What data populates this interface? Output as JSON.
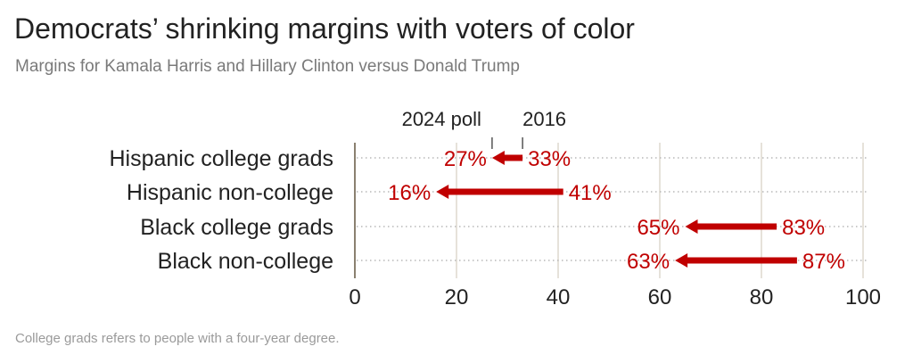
{
  "header": {
    "title": "Democrats’ shrinking margins with voters of color",
    "subtitle": "Margins for Kamala Harris and Hillary Clinton versus Donald Trump"
  },
  "footer": {
    "note": "College grads refers to people with a four-year degree."
  },
  "colors": {
    "arrow": "#c00000",
    "text": "#222222",
    "grid": "#e6e2da",
    "dots": "#b8b8b8",
    "axis": "#8a8070"
  },
  "chart_data": {
    "type": "arrow",
    "categories": [
      "Hispanic college grads",
      "Hispanic non-college",
      "Black college grads",
      "Black non-college"
    ],
    "series": [
      {
        "name": "2016",
        "values": [
          33,
          41,
          83,
          87
        ],
        "labels": [
          "33%",
          "41%",
          "83%",
          "87%"
        ]
      },
      {
        "name": "2024 poll",
        "values": [
          27,
          16,
          65,
          63
        ],
        "labels": [
          "27%",
          "16%",
          "65%",
          "63%"
        ]
      }
    ],
    "xticks": [
      0,
      20,
      40,
      60,
      80,
      100
    ],
    "xtick_labels": [
      "0",
      "20",
      "40",
      "60",
      "80",
      "100"
    ],
    "xlim": [
      0,
      100
    ],
    "grid": true,
    "legend": {
      "from": "2016",
      "to": "2024 poll",
      "placement": "above-first-row"
    }
  }
}
